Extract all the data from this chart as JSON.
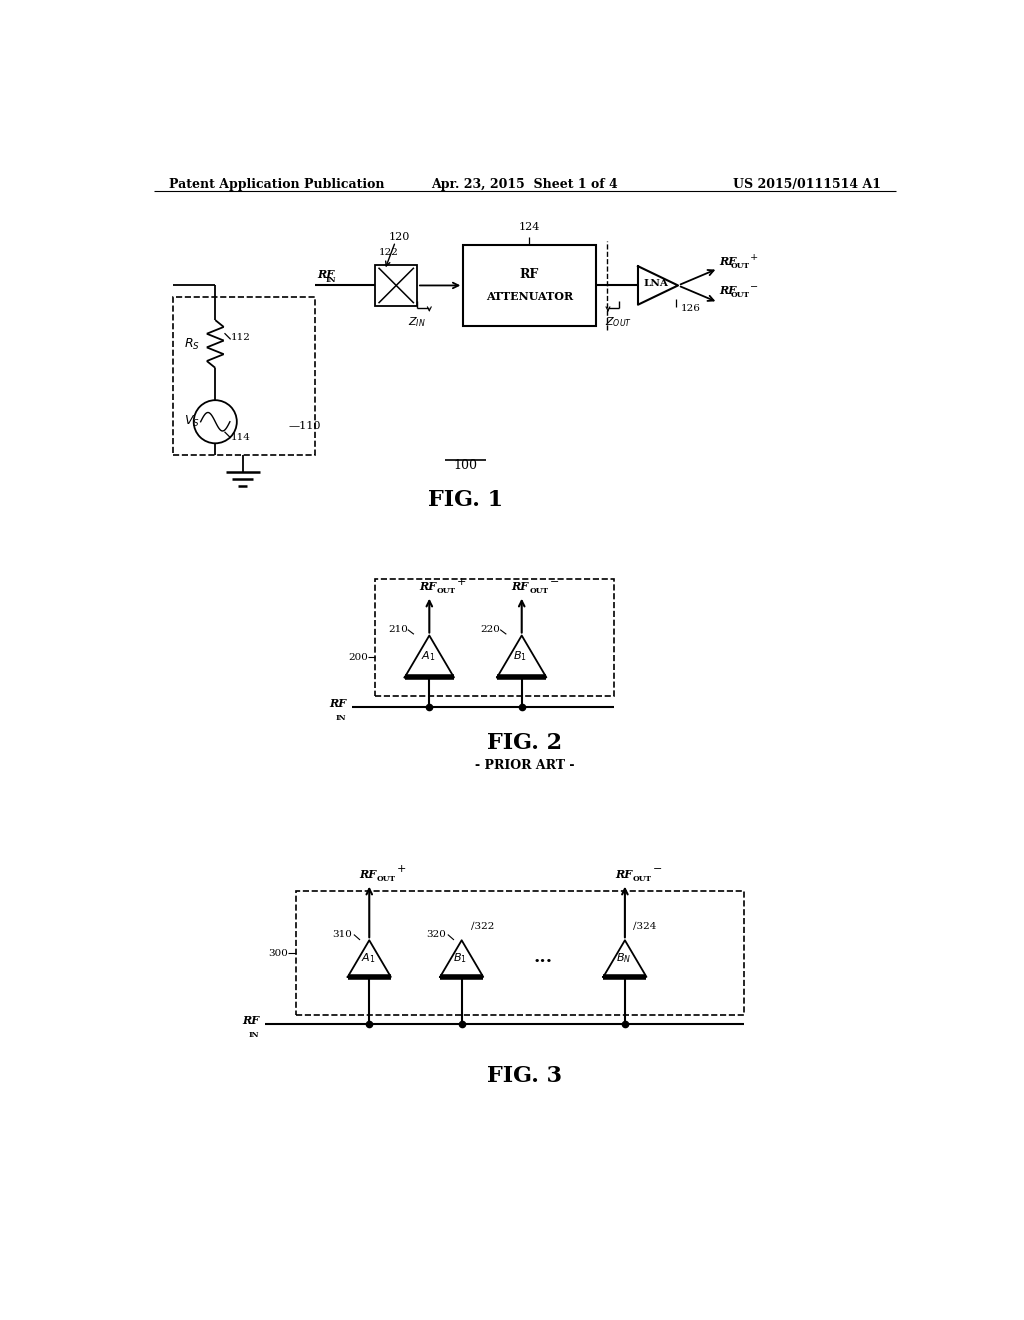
{
  "bg_color": "#ffffff",
  "line_color": "#000000",
  "header_left": "Patent Application Publication",
  "header_center": "Apr. 23, 2015  Sheet 1 of 4",
  "header_right": "US 2015/0111514 A1",
  "fig1_label": "FIG. 1",
  "fig1_ref": "100",
  "fig2_label": "FIG. 2",
  "fig2_sub": "- PRIOR ART -",
  "fig3_label": "FIG. 3"
}
